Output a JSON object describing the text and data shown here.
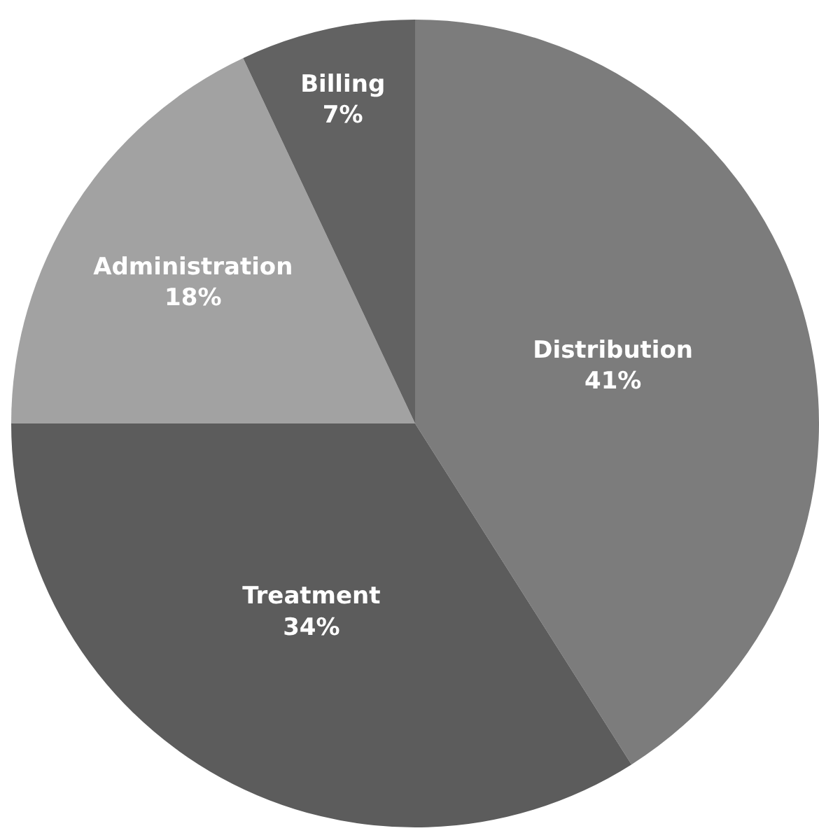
{
  "chart_data": {
    "type": "pie",
    "categories": [
      "Distribution",
      "Treatment",
      "Administration",
      "Billing"
    ],
    "values": [
      41,
      34,
      18,
      7
    ],
    "value_labels": [
      "41%",
      "34%",
      "18%",
      "7%"
    ],
    "colors": [
      "#7c7c7c",
      "#5c5c5c",
      "#a2a2a2",
      "#626262"
    ],
    "legend": false
  }
}
